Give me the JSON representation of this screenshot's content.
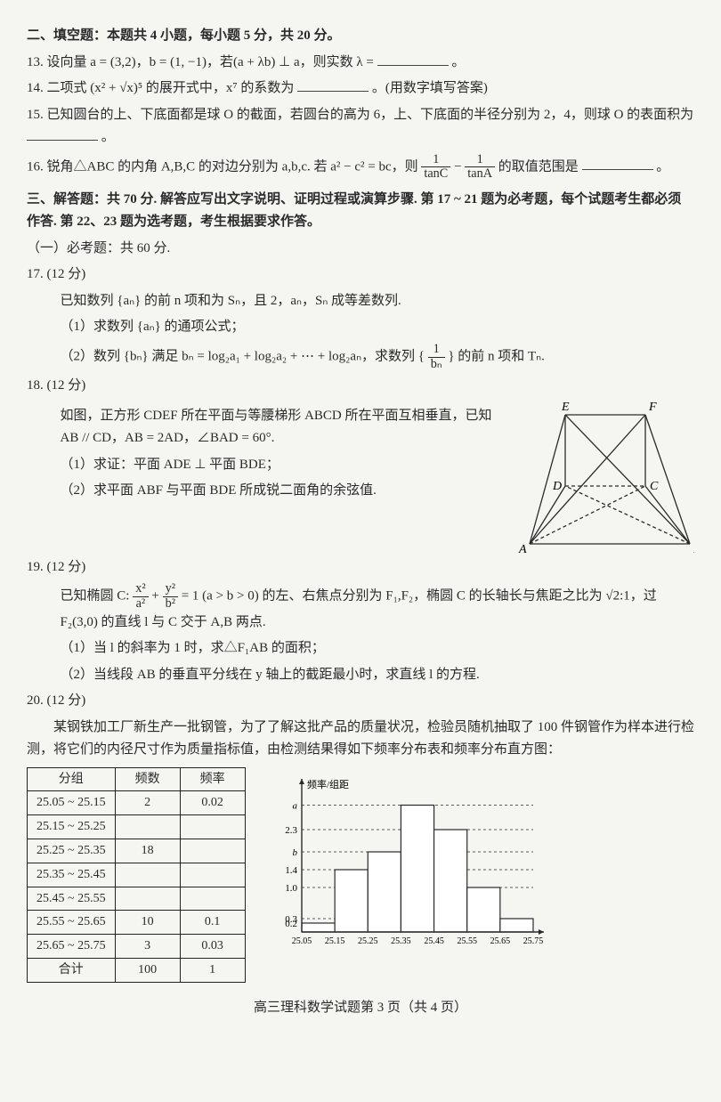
{
  "sec2": {
    "header": "二、填空题：本题共 4 小题，每小题 5 分，共 20 分。",
    "q13": "13. 设向量 a = (3,2)，b = (1, −1)，若(a + λb) ⊥ a，则实数 λ = ",
    "q13_tail": "。",
    "q14": "14. 二项式 (x² + √x)⁵ 的展开式中，x⁷ 的系数为 ",
    "q14_tail": "。(用数字填写答案)",
    "q15": "15. 已知圆台的上、下底面都是球 O 的截面，若圆台的高为 6，上、下底面的半径分别为 2，4，则球 O 的表面积为 ",
    "q15_tail": "。",
    "q16_a": "16. 锐角△ABC 的内角 A,B,C 的对边分别为 a,b,c. 若 a² − c² = bc，则 ",
    "q16_frac1_n": "1",
    "q16_frac1_d": "tanC",
    "q16_mid": " − ",
    "q16_frac2_n": "1",
    "q16_frac2_d": "tanA",
    "q16_b": " 的取值范围是 ",
    "q16_tail": "。"
  },
  "sec3": {
    "header": "三、解答题：共 70 分. 解答应写出文字说明、证明过程或演算步骤. 第 17 ~ 21 题为必考题，每个试题考生都必须作答. 第 22、23 题为选考题，考生根据要求作答。",
    "part1": "（一）必考题：共 60 分."
  },
  "q17": {
    "head": "17. (12 分)",
    "l1": "已知数列 {aₙ} 的前 n 项和为 Sₙ，且 2，aₙ，Sₙ 成等差数列.",
    "l2": "（1）求数列 {aₙ} 的通项公式；",
    "l3a": "（2）数列 {bₙ} 满足 bₙ = log₂a₁ + log₂a₂ + ⋯ + log₂aₙ，求数列 { ",
    "l3_frac_n": "1",
    "l3_frac_d": "bₙ",
    "l3b": " } 的前 n 项和 Tₙ."
  },
  "q18": {
    "head": "18. (12 分)",
    "l1": "如图，正方形 CDEF 所在平面与等腰梯形 ABCD 所在平面互相垂直，已知 AB // CD，AB = 2AD，∠BAD = 60°.",
    "l2": "（1）求证：平面 ADE ⊥ 平面 BDE；",
    "l3": "（2）求平面 ABF 与平面 BDE 所成锐二面角的余弦值.",
    "labels": {
      "A": "A",
      "B": "B",
      "C": "C",
      "D": "D",
      "E": "E",
      "F": "F"
    },
    "stroke": "#2a2a2a"
  },
  "q19": {
    "head": "19. (12 分)",
    "l1a": "已知椭圆 C: ",
    "f1n": "x²",
    "f1d": "a²",
    "plus": " + ",
    "f2n": "y²",
    "f2d": "b²",
    "l1b": " = 1 (a > b > 0) 的左、右焦点分别为 F₁,F₂，椭圆 C 的长轴长与焦距之比为 √2:1，过 F₂(3,0) 的直线 l 与 C 交于 A,B 两点.",
    "l2": "（1）当 l 的斜率为 1 时，求△F₁AB 的面积；",
    "l3": "（2）当线段 AB 的垂直平分线在 y 轴上的截距最小时，求直线 l 的方程."
  },
  "q20": {
    "head": "20. (12 分)",
    "intro": "某钢铁加工厂新生产一批钢管，为了了解这批产品的质量状况，检验员随机抽取了 100 件钢管作为样本进行检测，将它们的内径尺寸作为质量指标值，由检测结果得如下频率分布表和频率分布直方图：",
    "table": {
      "headers": [
        "分组",
        "频数",
        "频率"
      ],
      "rows": [
        [
          "25.05 ~ 25.15",
          "2",
          "0.02"
        ],
        [
          "25.15 ~ 25.25",
          "",
          ""
        ],
        [
          "25.25 ~ 25.35",
          "18",
          ""
        ],
        [
          "25.35 ~ 25.45",
          "",
          ""
        ],
        [
          "25.45 ~ 25.55",
          "",
          ""
        ],
        [
          "25.55 ~ 25.65",
          "10",
          "0.1"
        ],
        [
          "25.65 ~ 25.75",
          "3",
          "0.03"
        ],
        [
          "合计",
          "100",
          "1"
        ]
      ]
    },
    "hist": {
      "ylabel": "频率/组距",
      "xticks": [
        "25.05",
        "25.15",
        "25.25",
        "25.35",
        "25.45",
        "25.55",
        "25.65",
        "25.75"
      ],
      "yticks": [
        {
          "label": "0.2",
          "v": 0.2
        },
        {
          "label": "0.3",
          "v": 0.3
        },
        {
          "label": "1.0",
          "v": 1.0
        },
        {
          "label": "1.4",
          "v": 1.4
        },
        {
          "label": "b",
          "v": 1.8
        },
        {
          "label": "2.3",
          "v": 2.3
        },
        {
          "label": "a",
          "v": 2.85
        }
      ],
      "bars": [
        0.2,
        1.4,
        1.8,
        2.85,
        2.3,
        1.0,
        0.3
      ],
      "bar_stroke": "#2a2a2a",
      "bar_fill": "#ffffff",
      "axis_color": "#2a2a2a",
      "ymax": 3.2
    }
  },
  "footer": "高三理科数学试题第 3 页（共 4 页）"
}
